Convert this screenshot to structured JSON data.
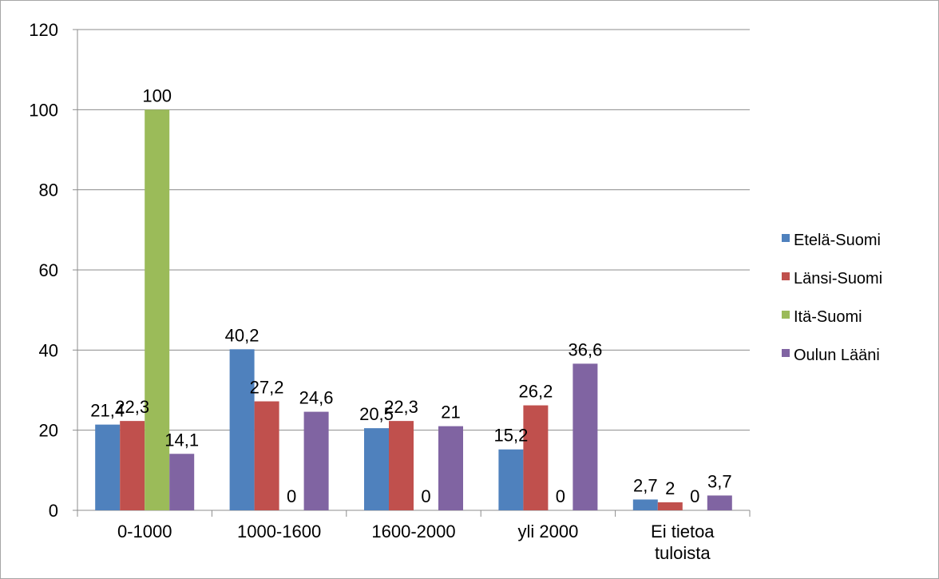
{
  "chart_data": {
    "type": "bar",
    "title": "",
    "xlabel": "",
    "ylabel": "",
    "categories": [
      [
        "0-1000"
      ],
      [
        "1000-1600"
      ],
      [
        "1600-2000"
      ],
      [
        "yli 2000"
      ],
      [
        "Ei tietoa",
        "tuloista"
      ]
    ],
    "series": [
      {
        "name": "Etelä-Suomi",
        "color": "#4f81bd",
        "values": [
          21.4,
          40.2,
          20.5,
          15.2,
          2.7
        ],
        "labels": [
          "21,4",
          "40,2",
          "20,5",
          "15,2",
          "2,7"
        ]
      },
      {
        "name": "Länsi-Suomi",
        "color": "#c0504d",
        "values": [
          22.3,
          27.2,
          22.3,
          26.2,
          2
        ],
        "labels": [
          "22,3",
          "27,2",
          "22,3",
          "26,2",
          "2"
        ]
      },
      {
        "name": "Itä-Suomi",
        "color": "#9bbb59",
        "values": [
          100,
          0,
          0,
          0,
          0
        ],
        "labels": [
          "100",
          "0",
          "0",
          "0",
          "0"
        ]
      },
      {
        "name": "Oulun Lääni",
        "color": "#8064a2",
        "values": [
          14.1,
          24.6,
          21,
          36.6,
          3.7
        ],
        "labels": [
          "14,1",
          "24,6",
          "21",
          "36,6",
          "3,7"
        ]
      }
    ],
    "ylim": [
      0,
      120
    ],
    "yticks": [
      0,
      20,
      40,
      60,
      80,
      100,
      120
    ],
    "grid": true,
    "legend_position": "right"
  }
}
